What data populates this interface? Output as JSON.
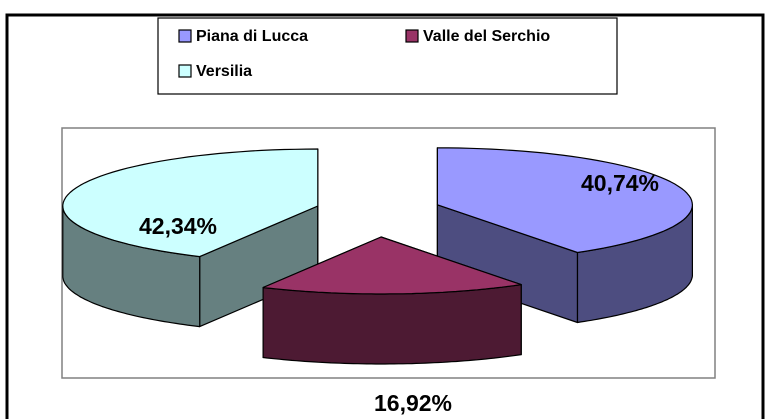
{
  "chart_data": {
    "type": "pie",
    "categories": [
      "Piana di Lucca",
      "Valle del Serchio",
      "Versilia"
    ],
    "values": [
      40.74,
      16.92,
      42.34
    ],
    "value_labels": [
      "40,74%",
      "16,92%",
      "42,34%"
    ],
    "colors": [
      "#9999ff",
      "#993366",
      "#ccffff"
    ],
    "legend": "top",
    "three_d": true,
    "exploded": true
  }
}
